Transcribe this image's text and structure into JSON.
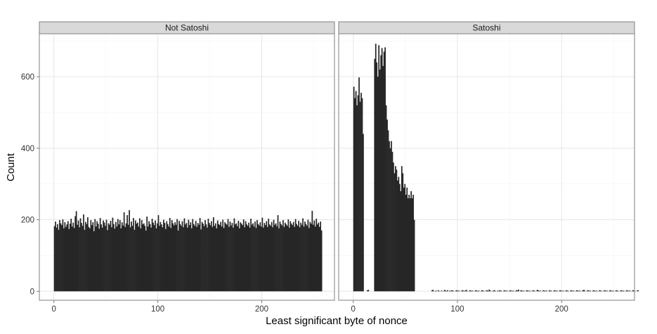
{
  "chart_data": {
    "type": "bar",
    "facet_style": "side-by-side panels with gray strip headers",
    "xlabel": "Least significant byte of nonce",
    "ylabel": "Count",
    "xlim": [
      -14,
      270
    ],
    "ylim": [
      -25,
      720
    ],
    "x_ticks": [
      0,
      100,
      200
    ],
    "y_ticks": [
      0,
      200,
      400,
      600
    ],
    "grid": true,
    "bar_color": "#262626",
    "strip_fill": "#d9d9d9",
    "panels": [
      {
        "name": "Not Satoshi",
        "x_start": 0,
        "bin_width": 1,
        "values": [
          182,
          195,
          178,
          188,
          172,
          199,
          190,
          185,
          201,
          176,
          193,
          180,
          187,
          196,
          174,
          189,
          203,
          181,
          192,
          177,
          210,
          224,
          186,
          198,
          179,
          204,
          191,
          183,
          215,
          172,
          194,
          188,
          207,
          180,
          176,
          199,
          185,
          193,
          168,
          202,
          181,
          196,
          189,
          175,
          205,
          187,
          178,
          198,
          192,
          183,
          200,
          171,
          190,
          186,
          197,
          179,
          206,
          188,
          175,
          194,
          181,
          202,
          187,
          199,
          176,
          193,
          184,
          221,
          180,
          190,
          213,
          186,
          227,
          179,
          195,
          183,
          205,
          172,
          198,
          189,
          192,
          181,
          204,
          176,
          199,
          187,
          190,
          183,
          170,
          209,
          181,
          196,
          188,
          178,
          203,
          192,
          185,
          198,
          176,
          190,
          213,
          183,
          194,
          187,
          179,
          200,
          191,
          174,
          196,
          188,
          181,
          205,
          177,
          199,
          190,
          184,
          193,
          186,
          202,
          170,
          197,
          188,
          183,
          196,
          179,
          204,
          187,
          191,
          178,
          200,
          185,
          193,
          176,
          202,
          188,
          183,
          197,
          180,
          191,
          186,
          205,
          173,
          194,
          189,
          182,
          199,
          187,
          178,
          203,
          191,
          185,
          196,
          180,
          207,
          183,
          190,
          176,
          198,
          188,
          185,
          194,
          181,
          200,
          177,
          193,
          189,
          186,
          202,
          180,
          195,
          184,
          191,
          178,
          204,
          187,
          190,
          182,
          197,
          176,
          193,
          189,
          185,
          201,
          179,
          196,
          187,
          183,
          192,
          178,
          203,
          186,
          190,
          181,
          195,
          177,
          199,
          188,
          184,
          193,
          181,
          206,
          178,
          191,
          185,
          196,
          180,
          203,
          187,
          183,
          194,
          179,
          200,
          186,
          190,
          182,
          213,
          176,
          195,
          188,
          184,
          199,
          180,
          192,
          187,
          183,
          201,
          178,
          196,
          189,
          185,
          194,
          180,
          202,
          188,
          183,
          197,
          179,
          192,
          186,
          204,
          181,
          195,
          188,
          183,
          200,
          177,
          194,
          189,
          225,
          186,
          198,
          181,
          203,
          187,
          192,
          180,
          195,
          170
        ]
      },
      {
        "name": "Satoshi",
        "x_start": 0,
        "bin_width": 1,
        "values": [
          572,
          540,
          560,
          520,
          548,
          598,
          530,
          555,
          540,
          440,
          0,
          0,
          0,
          3,
          4,
          0,
          0,
          0,
          0,
          0,
          650,
          692,
          640,
          600,
          688,
          620,
          660,
          680,
          630,
          670,
          682,
          520,
          480,
          450,
          420,
          400,
          420,
          390,
          360,
          330,
          350,
          340,
          310,
          320,
          300,
          280,
          350,
          330,
          290,
          300,
          270,
          290,
          260,
          270,
          260,
          280,
          260,
          270,
          200,
          0,
          0,
          0,
          0,
          0,
          0,
          0,
          0,
          0,
          0,
          0,
          0,
          0,
          0,
          0,
          0,
          3,
          4,
          0,
          1,
          2,
          0,
          3,
          1,
          0,
          2,
          1,
          0,
          4,
          2,
          1,
          3,
          0,
          2,
          1,
          3,
          2,
          1,
          0,
          2,
          3,
          1,
          2,
          0,
          1,
          3,
          2,
          1,
          2,
          4,
          1,
          0,
          2,
          3,
          1,
          2,
          0,
          1,
          3,
          2,
          1,
          2,
          0,
          1,
          3,
          2,
          1,
          0,
          2,
          3,
          1,
          5,
          2,
          0,
          1,
          2,
          3,
          1,
          0,
          2,
          1,
          3,
          2,
          1,
          0,
          2,
          3,
          1,
          2,
          0,
          1,
          3,
          2,
          1,
          2,
          0,
          1,
          3,
          2,
          5,
          0,
          2,
          3,
          1,
          2,
          0,
          1,
          3,
          2,
          1,
          2,
          0,
          1,
          3,
          2,
          1,
          0,
          4,
          3,
          1,
          2,
          0,
          1,
          3,
          2,
          1,
          2,
          0,
          1,
          3,
          2,
          1,
          0,
          2,
          3,
          1,
          2,
          0,
          1,
          3,
          2,
          1,
          2,
          0,
          1,
          3,
          2,
          1,
          0,
          2,
          3,
          1,
          2,
          0,
          1,
          3,
          2,
          1,
          2,
          0,
          1,
          3,
          4,
          1,
          0,
          2,
          3,
          1,
          2,
          0,
          1,
          3,
          2,
          1,
          2,
          0,
          1,
          3,
          2,
          1,
          0,
          2,
          3,
          1,
          2,
          0,
          1,
          3,
          2,
          1,
          2,
          0,
          1,
          3,
          2,
          1,
          0,
          2,
          3,
          1,
          2,
          0,
          1,
          3,
          2,
          1,
          2,
          0,
          1,
          3,
          2,
          1,
          0,
          2,
          3
        ]
      }
    ]
  }
}
